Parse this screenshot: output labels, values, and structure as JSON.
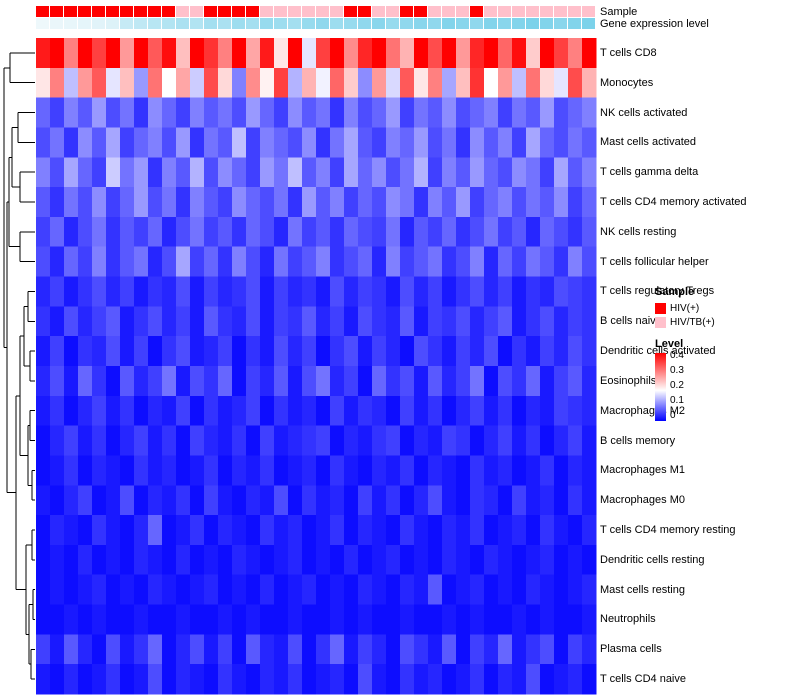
{
  "chart_data": {
    "type": "heatmap",
    "title": "",
    "xlabel": "",
    "ylabel": "",
    "columns_count": 40,
    "rows": [
      "T cells CD8",
      "Monocytes",
      "NK cells activated",
      "Mast cells activated",
      "T cells gamma delta",
      "T cells CD4 memory activated",
      "NK cells resting",
      "T cells follicular helper",
      "T cells regulatory Tregs",
      "B cells naive",
      "Dendritic cells activated",
      "Eosinophils",
      "Macrophages M2",
      "B cells memory",
      "Macrophages M1",
      "Macrophages M0",
      "T cells CD4 memory resting",
      "Dendritic cells resting",
      "Mast cells resting",
      "Neutrophils",
      "Plasma cells",
      "T cells CD4 naive"
    ],
    "matrix": [
      [
        0.38,
        0.42,
        0.3,
        0.45,
        0.35,
        0.4,
        0.28,
        0.44,
        0.33,
        0.39,
        0.25,
        0.41,
        0.36,
        0.3,
        0.43,
        0.27,
        0.38,
        0.22,
        0.4,
        0.18,
        0.35,
        0.42,
        0.29,
        0.37,
        0.44,
        0.31,
        0.26,
        0.4,
        0.34,
        0.43,
        0.28,
        0.37,
        0.45,
        0.32,
        0.39,
        0.24,
        0.41,
        0.35,
        0.3,
        0.43
      ],
      [
        0.22,
        0.3,
        0.15,
        0.28,
        0.33,
        0.18,
        0.25,
        0.12,
        0.31,
        0.2,
        0.27,
        0.16,
        0.34,
        0.23,
        0.1,
        0.29,
        0.21,
        0.35,
        0.14,
        0.26,
        0.19,
        0.32,
        0.24,
        0.11,
        0.28,
        0.17,
        0.33,
        0.22,
        0.3,
        0.13,
        0.25,
        0.36,
        0.2,
        0.28,
        0.15,
        0.31,
        0.23,
        0.18,
        0.34,
        0.26
      ],
      [
        0.08,
        0.05,
        0.1,
        0.07,
        0.12,
        0.06,
        0.09,
        0.04,
        0.11,
        0.08,
        0.05,
        0.1,
        0.07,
        0.09,
        0.06,
        0.12,
        0.08,
        0.05,
        0.11,
        0.07,
        0.09,
        0.04,
        0.1,
        0.06,
        0.08,
        0.12,
        0.05,
        0.09,
        0.07,
        0.11,
        0.06,
        0.08,
        0.1,
        0.05,
        0.09,
        0.07,
        0.12,
        0.06,
        0.08,
        0.1
      ],
      [
        0.06,
        0.09,
        0.04,
        0.11,
        0.07,
        0.13,
        0.05,
        0.08,
        0.1,
        0.06,
        0.12,
        0.04,
        0.09,
        0.07,
        0.15,
        0.05,
        0.1,
        0.08,
        0.06,
        0.11,
        0.04,
        0.09,
        0.13,
        0.07,
        0.05,
        0.1,
        0.08,
        0.12,
        0.06,
        0.09,
        0.04,
        0.11,
        0.07,
        0.1,
        0.05,
        0.13,
        0.08,
        0.06,
        0.09,
        0.07
      ],
      [
        0.1,
        0.06,
        0.13,
        0.08,
        0.05,
        0.16,
        0.09,
        0.12,
        0.04,
        0.1,
        0.07,
        0.14,
        0.06,
        0.11,
        0.08,
        0.05,
        0.12,
        0.09,
        0.15,
        0.07,
        0.1,
        0.05,
        0.13,
        0.08,
        0.11,
        0.06,
        0.09,
        0.14,
        0.05,
        0.1,
        0.07,
        0.12,
        0.08,
        0.06,
        0.11,
        0.09,
        0.05,
        0.13,
        0.07,
        0.1
      ],
      [
        0.07,
        0.04,
        0.09,
        0.06,
        0.11,
        0.05,
        0.08,
        0.12,
        0.06,
        0.09,
        0.04,
        0.1,
        0.07,
        0.05,
        0.11,
        0.08,
        0.06,
        0.09,
        0.04,
        0.12,
        0.07,
        0.1,
        0.05,
        0.08,
        0.06,
        0.11,
        0.09,
        0.04,
        0.1,
        0.07,
        0.12,
        0.05,
        0.08,
        0.1,
        0.06,
        0.09,
        0.07,
        0.11,
        0.05,
        0.08
      ],
      [
        0.05,
        0.08,
        0.03,
        0.06,
        0.09,
        0.04,
        0.07,
        0.05,
        0.08,
        0.03,
        0.06,
        0.09,
        0.05,
        0.07,
        0.04,
        0.08,
        0.06,
        0.03,
        0.09,
        0.05,
        0.07,
        0.04,
        0.08,
        0.06,
        0.05,
        0.09,
        0.03,
        0.07,
        0.05,
        0.08,
        0.04,
        0.06,
        0.09,
        0.05,
        0.07,
        0.03,
        0.08,
        0.06,
        0.04,
        0.07
      ],
      [
        0.06,
        0.03,
        0.08,
        0.05,
        0.1,
        0.04,
        0.07,
        0.09,
        0.03,
        0.06,
        0.13,
        0.05,
        0.08,
        0.04,
        0.1,
        0.06,
        0.03,
        0.09,
        0.05,
        0.07,
        0.1,
        0.04,
        0.06,
        0.08,
        0.03,
        0.1,
        0.05,
        0.07,
        0.09,
        0.04,
        0.06,
        0.1,
        0.03,
        0.08,
        0.05,
        0.09,
        0.07,
        0.04,
        0.1,
        0.06
      ],
      [
        0.03,
        0.05,
        0.02,
        0.04,
        0.06,
        0.03,
        0.05,
        0.02,
        0.04,
        0.03,
        0.06,
        0.02,
        0.05,
        0.03,
        0.04,
        0.06,
        0.02,
        0.05,
        0.03,
        0.04,
        0.02,
        0.06,
        0.03,
        0.05,
        0.04,
        0.02,
        0.06,
        0.03,
        0.05,
        0.02,
        0.04,
        0.06,
        0.03,
        0.05,
        0.02,
        0.04,
        0.03,
        0.06,
        0.05,
        0.04
      ],
      [
        0.04,
        0.02,
        0.06,
        0.03,
        0.05,
        0.07,
        0.02,
        0.04,
        0.06,
        0.03,
        0.05,
        0.02,
        0.07,
        0.04,
        0.03,
        0.06,
        0.02,
        0.05,
        0.04,
        0.07,
        0.03,
        0.05,
        0.02,
        0.06,
        0.04,
        0.03,
        0.07,
        0.02,
        0.05,
        0.04,
        0.06,
        0.03,
        0.05,
        0.07,
        0.02,
        0.04,
        0.06,
        0.03,
        0.05,
        0.04
      ],
      [
        0.02,
        0.05,
        0.01,
        0.04,
        0.03,
        0.06,
        0.02,
        0.05,
        0.01,
        0.04,
        0.06,
        0.02,
        0.03,
        0.05,
        0.01,
        0.04,
        0.02,
        0.06,
        0.03,
        0.05,
        0.01,
        0.04,
        0.06,
        0.02,
        0.05,
        0.03,
        0.01,
        0.06,
        0.04,
        0.02,
        0.05,
        0.03,
        0.06,
        0.01,
        0.04,
        0.02,
        0.05,
        0.03,
        0.06,
        0.04
      ],
      [
        0.03,
        0.06,
        0.02,
        0.08,
        0.04,
        0.01,
        0.07,
        0.03,
        0.05,
        0.09,
        0.02,
        0.06,
        0.04,
        0.08,
        0.01,
        0.05,
        0.03,
        0.07,
        0.02,
        0.06,
        0.09,
        0.03,
        0.05,
        0.01,
        0.08,
        0.04,
        0.06,
        0.02,
        0.07,
        0.03,
        0.05,
        0.09,
        0.01,
        0.06,
        0.04,
        0.08,
        0.02,
        0.05,
        0.07,
        0.03
      ],
      [
        0.02,
        0.04,
        0.01,
        0.03,
        0.05,
        0.02,
        0.04,
        0.01,
        0.03,
        0.02,
        0.05,
        0.01,
        0.04,
        0.02,
        0.03,
        0.05,
        0.01,
        0.04,
        0.02,
        0.03,
        0.01,
        0.05,
        0.02,
        0.04,
        0.03,
        0.01,
        0.05,
        0.02,
        0.04,
        0.01,
        0.03,
        0.05,
        0.02,
        0.04,
        0.01,
        0.03,
        0.02,
        0.05,
        0.04,
        0.03
      ],
      [
        0.01,
        0.03,
        0.05,
        0.02,
        0.04,
        0.01,
        0.03,
        0.05,
        0.02,
        0.04,
        0.01,
        0.05,
        0.03,
        0.02,
        0.04,
        0.01,
        0.05,
        0.02,
        0.03,
        0.04,
        0.05,
        0.01,
        0.03,
        0.02,
        0.04,
        0.05,
        0.01,
        0.03,
        0.02,
        0.05,
        0.04,
        0.01,
        0.03,
        0.05,
        0.02,
        0.04,
        0.01,
        0.03,
        0.05,
        0.02
      ],
      [
        0.01,
        0.02,
        0.04,
        0.01,
        0.03,
        0.02,
        0.01,
        0.04,
        0.02,
        0.03,
        0.01,
        0.02,
        0.04,
        0.01,
        0.03,
        0.02,
        0.04,
        0.01,
        0.02,
        0.03,
        0.01,
        0.04,
        0.02,
        0.01,
        0.03,
        0.02,
        0.04,
        0.01,
        0.03,
        0.02,
        0.01,
        0.04,
        0.02,
        0.03,
        0.01,
        0.02,
        0.04,
        0.01,
        0.03,
        0.02
      ],
      [
        0.02,
        0.01,
        0.03,
        0.05,
        0.01,
        0.02,
        0.06,
        0.01,
        0.03,
        0.02,
        0.04,
        0.01,
        0.05,
        0.02,
        0.01,
        0.03,
        0.02,
        0.06,
        0.01,
        0.04,
        0.02,
        0.03,
        0.01,
        0.05,
        0.02,
        0.04,
        0.01,
        0.03,
        0.06,
        0.02,
        0.01,
        0.04,
        0.03,
        0.01,
        0.05,
        0.02,
        0.03,
        0.01,
        0.04,
        0.02
      ],
      [
        0.01,
        0.03,
        0.02,
        0.01,
        0.04,
        0.02,
        0.01,
        0.03,
        0.08,
        0.01,
        0.02,
        0.04,
        0.01,
        0.03,
        0.02,
        0.01,
        0.04,
        0.02,
        0.03,
        0.01,
        0.02,
        0.04,
        0.01,
        0.03,
        0.02,
        0.01,
        0.04,
        0.02,
        0.01,
        0.03,
        0.02,
        0.04,
        0.01,
        0.02,
        0.03,
        0.01,
        0.04,
        0.02,
        0.01,
        0.03
      ],
      [
        0.01,
        0.02,
        0.01,
        0.03,
        0.01,
        0.02,
        0.01,
        0.03,
        0.02,
        0.01,
        0.03,
        0.01,
        0.02,
        0.01,
        0.03,
        0.02,
        0.01,
        0.02,
        0.03,
        0.01,
        0.02,
        0.01,
        0.03,
        0.01,
        0.02,
        0.03,
        0.01,
        0.02,
        0.01,
        0.03,
        0.02,
        0.01,
        0.03,
        0.02,
        0.01,
        0.02,
        0.03,
        0.01,
        0.02,
        0.01
      ],
      [
        0.01,
        0.02,
        0.01,
        0.02,
        0.03,
        0.01,
        0.02,
        0.01,
        0.03,
        0.02,
        0.01,
        0.02,
        0.03,
        0.01,
        0.02,
        0.01,
        0.03,
        0.01,
        0.02,
        0.03,
        0.01,
        0.02,
        0.01,
        0.03,
        0.02,
        0.01,
        0.03,
        0.02,
        0.07,
        0.01,
        0.02,
        0.03,
        0.01,
        0.02,
        0.01,
        0.03,
        0.02,
        0.01,
        0.02,
        0.03
      ],
      [
        0.01,
        0.01,
        0.02,
        0.01,
        0.02,
        0.01,
        0.01,
        0.02,
        0.01,
        0.01,
        0.02,
        0.01,
        0.01,
        0.02,
        0.01,
        0.02,
        0.01,
        0.01,
        0.02,
        0.01,
        0.01,
        0.02,
        0.01,
        0.02,
        0.01,
        0.01,
        0.02,
        0.01,
        0.01,
        0.02,
        0.01,
        0.02,
        0.01,
        0.01,
        0.02,
        0.01,
        0.02,
        0.01,
        0.01,
        0.02
      ],
      [
        0.05,
        0.02,
        0.07,
        0.03,
        0.01,
        0.06,
        0.02,
        0.04,
        0.08,
        0.01,
        0.03,
        0.06,
        0.02,
        0.05,
        0.01,
        0.07,
        0.03,
        0.02,
        0.06,
        0.01,
        0.04,
        0.08,
        0.02,
        0.05,
        0.03,
        0.01,
        0.06,
        0.04,
        0.02,
        0.07,
        0.01,
        0.05,
        0.03,
        0.08,
        0.02,
        0.04,
        0.06,
        0.01,
        0.05,
        0.03
      ],
      [
        0.02,
        0.01,
        0.03,
        0.01,
        0.02,
        0.04,
        0.01,
        0.02,
        0.06,
        0.01,
        0.03,
        0.02,
        0.01,
        0.04,
        0.02,
        0.01,
        0.03,
        0.02,
        0.04,
        0.01,
        0.02,
        0.03,
        0.01,
        0.06,
        0.02,
        0.01,
        0.04,
        0.02,
        0.03,
        0.01,
        0.02,
        0.04,
        0.01,
        0.03,
        0.02,
        0.06,
        0.01,
        0.02,
        0.03,
        0.01
      ]
    ],
    "color_scale": {
      "min": 0,
      "mid": 0.2,
      "max": 0.4,
      "low_color": "#0000FF",
      "mid_color": "#FFFFFF",
      "high_color": "#FF0000"
    },
    "annotations": {
      "sample": {
        "label": "Sample",
        "values": [
          "HIV(+)",
          "HIV(+)",
          "HIV(+)",
          "HIV(+)",
          "HIV(+)",
          "HIV(+)",
          "HIV(+)",
          "HIV(+)",
          "HIV(+)",
          "HIV(+)",
          "HIV/TB(+)",
          "HIV/TB(+)",
          "HIV(+)",
          "HIV(+)",
          "HIV(+)",
          "HIV(+)",
          "HIV/TB(+)",
          "HIV/TB(+)",
          "HIV/TB(+)",
          "HIV/TB(+)",
          "HIV/TB(+)",
          "HIV/TB(+)",
          "HIV(+)",
          "HIV(+)",
          "HIV/TB(+)",
          "HIV/TB(+)",
          "HIV(+)",
          "HIV(+)",
          "HIV/TB(+)",
          "HIV/TB(+)",
          "HIV/TB(+)",
          "HIV(+)",
          "HIV/TB(+)",
          "HIV/TB(+)",
          "HIV/TB(+)",
          "HIV/TB(+)",
          "HIV/TB(+)",
          "HIV/TB(+)",
          "HIV/TB(+)",
          "HIV/TB(+)"
        ],
        "colors": {
          "HIV(+)": "#FF0000",
          "HIV/TB(+)": "#FFC0CB"
        }
      },
      "gene_expression": {
        "label": "Gene expression level",
        "values": [
          0.05,
          0.08,
          0.1,
          0.12,
          0.15,
          0.18,
          0.35,
          0.4,
          0.45,
          0.5,
          0.55,
          0.5,
          0.6,
          0.55,
          0.65,
          0.6,
          0.7,
          0.65,
          0.6,
          0.7,
          0.75,
          0.65,
          0.7,
          0.75,
          0.8,
          0.7,
          0.75,
          0.8,
          0.75,
          0.85,
          0.8,
          0.75,
          0.85,
          0.8,
          0.85,
          0.9,
          0.85,
          0.8,
          0.85,
          0.9
        ],
        "low_color": "#F5FAFC",
        "high_color": "#6ECDE8"
      }
    },
    "legend": {
      "sample_title": "Sample",
      "sample_items": [
        {
          "label": "HIV(+)",
          "color": "#FF0000"
        },
        {
          "label": "HIV/TB(+)",
          "color": "#FFC0CB"
        }
      ],
      "level_title": "Level",
      "level_ticks": [
        "0.4",
        "0.3",
        "0.2",
        "0.1",
        "0"
      ]
    },
    "layout": {
      "legend_position": "right",
      "row_dendrogram": "left",
      "grid": false
    }
  }
}
